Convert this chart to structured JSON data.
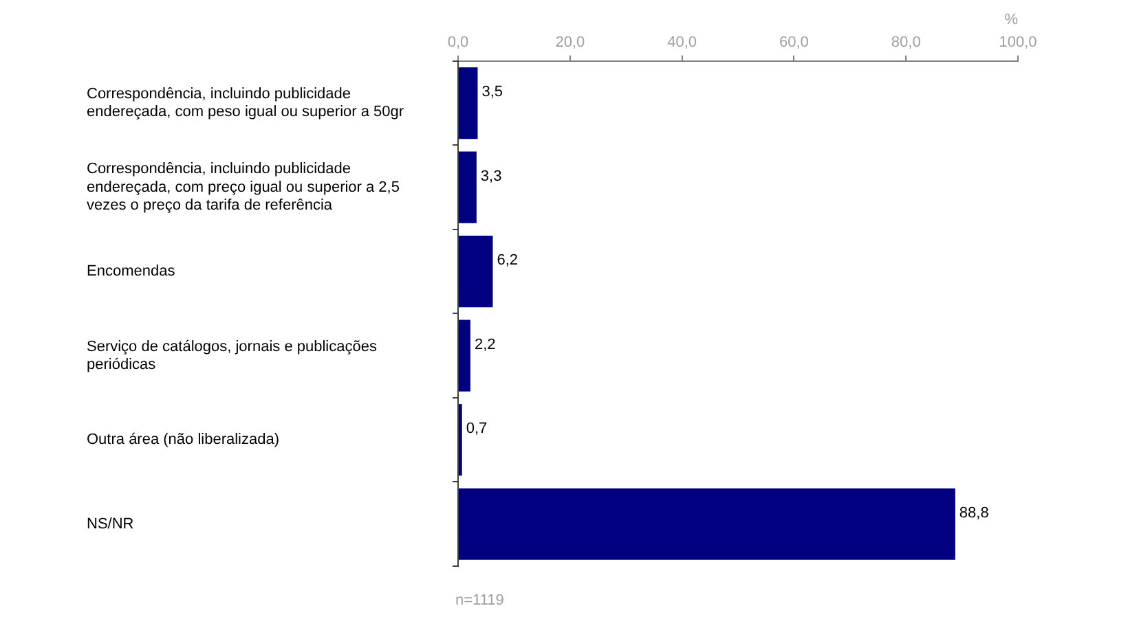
{
  "chart_data": {
    "type": "bar",
    "orientation": "horizontal",
    "xlabel": "%",
    "categories": [
      "Correspondência, incluindo publicidade endereçada, com peso igual ou superior a 50gr",
      "Correspondência, incluindo publicidade endereçada, com preço igual ou superior a 2,5 vezes o preço da tarifa de referência",
      "Encomendas",
      "Serviço de catálogos, jornais e publicações periódicas",
      "Outra área (não liberalizada)",
      "NS/NR"
    ],
    "values": [
      3.5,
      3.3,
      6.2,
      2.2,
      0.7,
      88.8
    ],
    "value_labels": [
      "3,5",
      "3,3",
      "6,2",
      "2,2",
      "0,7",
      "88,8"
    ],
    "color": "#000080",
    "xlim": [
      0,
      100
    ],
    "xticks": [
      {
        "value": 0,
        "label": "0,0"
      },
      {
        "value": 20,
        "label": "20,0"
      },
      {
        "value": 40,
        "label": "40,0"
      },
      {
        "value": 60,
        "label": "60,0"
      },
      {
        "value": 80,
        "label": "80,0"
      },
      {
        "value": 100,
        "label": "100,0"
      }
    ],
    "grid": false,
    "legend": false,
    "annotations": [
      "n=1119"
    ]
  }
}
